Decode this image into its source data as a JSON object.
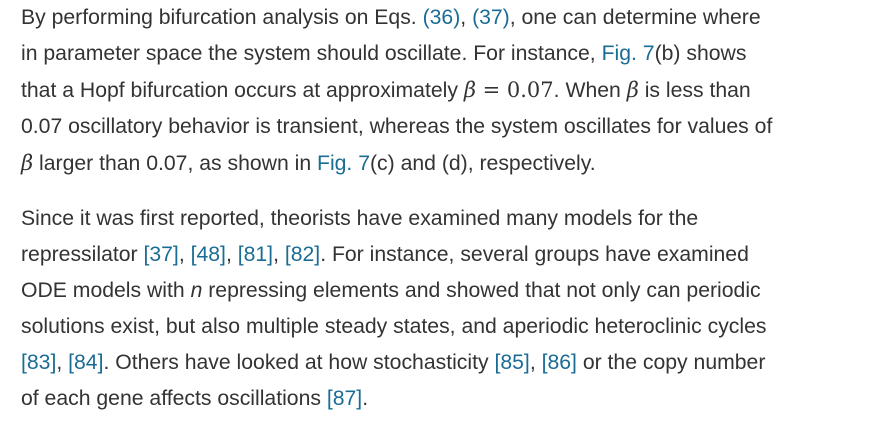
{
  "para1": {
    "l1": {
      "t1": "By performing bifurcation analysis on Eqs. ",
      "r1": "(36)",
      "t2": ", ",
      "r2": "(37)",
      "t3": ", one can determine where"
    },
    "l2": {
      "t1": "in parameter space the system should oscillate. For instance, ",
      "fig_label": "Fig. 7",
      "t2": "(b) shows"
    },
    "l3": {
      "t1": "that a Hopf bifurcation occurs at approximately ",
      "m_beta": "β",
      "m_eq": " = 0.07",
      "t2": ". When ",
      "m_beta2": "β",
      "t3": " is less than"
    },
    "l4": {
      "t1": "0.07 oscillatory behavior is transient, whereas the system oscillates for values of"
    },
    "l5": {
      "m_beta": "β",
      "t1": " larger than 0.07, as shown in ",
      "fig_label": "Fig. 7",
      "t2": "(c) and (d), respectively."
    }
  },
  "para2": {
    "l1": {
      "t1": "Since it was first reported, theorists have examined many models for the"
    },
    "l2": {
      "t1": "repressilator ",
      "r1": "[37]",
      "s1": ", ",
      "r2": "[48]",
      "s2": ", ",
      "r3": "[81]",
      "s3": ", ",
      "r4": "[82]",
      "t2": ". For instance, several groups have examined"
    },
    "l3": {
      "t1": "ODE models with ",
      "n": "n",
      "t2": " repressing elements and showed that not only can periodic"
    },
    "l4": {
      "t1": "solutions exist, but also multiple steady states, and aperiodic heteroclinic cycles"
    },
    "l5": {
      "r1": "[83]",
      "s1": ", ",
      "r2": "[84]",
      "t1": ". Others have looked at how stochasticity ",
      "r3": "[85]",
      "s2": ", ",
      "r4": "[86]",
      "t2": " or the copy number"
    },
    "l6": {
      "t1": "of each gene affects oscillations ",
      "r1": "[87]",
      "t2": "."
    }
  },
  "colors": {
    "text": "#333333",
    "link": "#1a6c94",
    "background": "#ffffff"
  }
}
